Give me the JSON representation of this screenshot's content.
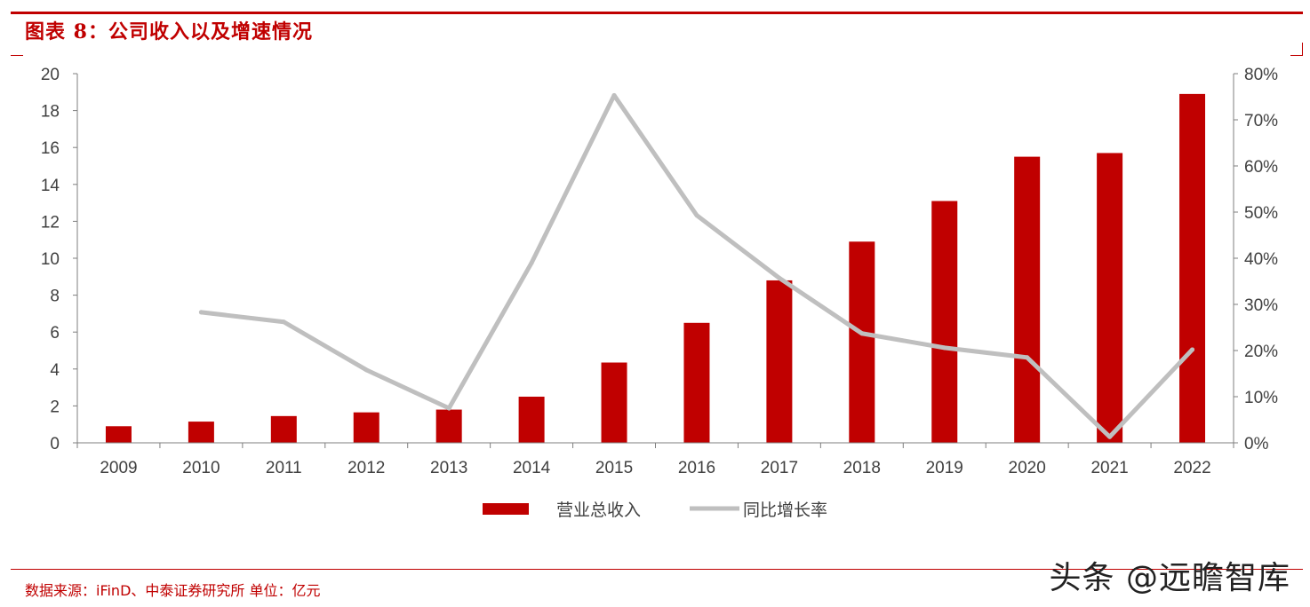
{
  "header": {
    "title": "图表 8：公司收入以及增速情况"
  },
  "footer": {
    "source": "数据来源：iFinD、中泰证券研究所 单位：亿元",
    "watermark": "头条 @远瞻智库"
  },
  "colors": {
    "accent": "#c00000",
    "bar": "#c00000",
    "line": "#bfbfbf"
  },
  "chart_data": {
    "type": "bar",
    "title": "",
    "xlabel": "",
    "ylabel": "",
    "categories": [
      "2009",
      "2010",
      "2011",
      "2012",
      "2013",
      "2014",
      "2015",
      "2016",
      "2017",
      "2018",
      "2019",
      "2020",
      "2021",
      "2022"
    ],
    "ylim": [
      0,
      20
    ],
    "y_ticks": [
      "0",
      "2",
      "4",
      "6",
      "8",
      "10",
      "12",
      "14",
      "16",
      "18",
      "20"
    ],
    "y2lim": [
      0,
      80
    ],
    "y2_ticks": [
      "0%",
      "10%",
      "20%",
      "30%",
      "40%",
      "50%",
      "60%",
      "70%",
      "80%"
    ],
    "grid": false,
    "legend_position": "bottom",
    "series": [
      {
        "name": "营业总收入",
        "type": "bar",
        "axis": "left",
        "values": [
          0.9,
          1.15,
          1.45,
          1.65,
          1.8,
          2.5,
          4.35,
          6.5,
          8.8,
          10.9,
          13.1,
          15.5,
          15.7,
          18.9
        ]
      },
      {
        "name": "同比增长率",
        "type": "line",
        "axis": "right",
        "values": [
          null,
          28.3,
          26.2,
          15.8,
          7.5,
          39.0,
          75.3,
          49.3,
          35.7,
          23.7,
          20.6,
          18.5,
          1.3,
          20.2
        ]
      }
    ]
  }
}
